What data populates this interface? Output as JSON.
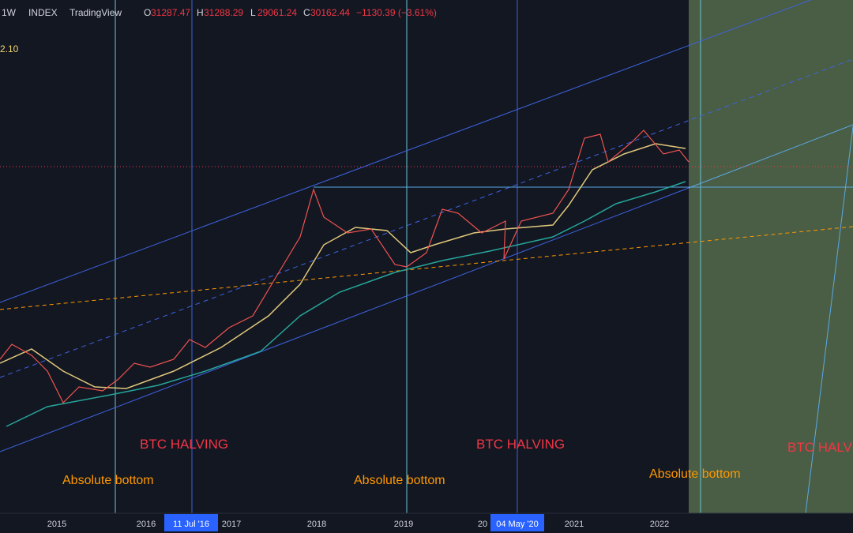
{
  "header": {
    "interval": "1W",
    "source": "INDEX",
    "brand": "TradingView",
    "ohlc": [
      {
        "label": "O",
        "value": "31287.47"
      },
      {
        "label": "H",
        "value": "31288.29"
      },
      {
        "label": "L",
        "value": "29061.24"
      },
      {
        "label": "C",
        "value": "30162.44"
      }
    ],
    "change": "−1130.39 (−3.61%)"
  },
  "indicator_value": "2.10",
  "annotations": [
    {
      "text": "BTC HALVING"
    },
    {
      "text": "BTC HALVING"
    },
    {
      "text": "BTC HALVING"
    },
    {
      "text": "Absolute bottom"
    },
    {
      "text": "Absolute bottom"
    },
    {
      "text": "Absolute bottom"
    }
  ],
  "time_axis": [
    "2015",
    "2016",
    "11 Jul '16",
    "2017",
    "2018",
    "2019",
    "20",
    "04 May '20",
    "2021",
    "2022"
  ]
}
